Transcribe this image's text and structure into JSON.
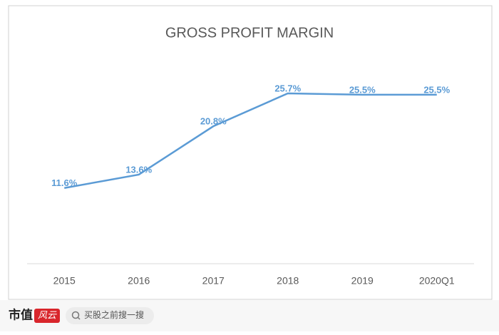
{
  "chart_data": {
    "type": "line",
    "title": "GROSS PROFIT MARGIN",
    "categories": [
      "2015",
      "2016",
      "2017",
      "2018",
      "2019",
      "2020Q1"
    ],
    "values": [
      11.6,
      13.6,
      20.8,
      25.7,
      25.5,
      25.5
    ],
    "value_labels": [
      "11.6%",
      "13.6%",
      "20.8%",
      "25.7%",
      "25.5%",
      "25.5%"
    ],
    "color": "#5b9bd5"
  },
  "footer": {
    "brand": "市值",
    "brand_mark": "风云",
    "search": "买股之前搜一搜"
  }
}
